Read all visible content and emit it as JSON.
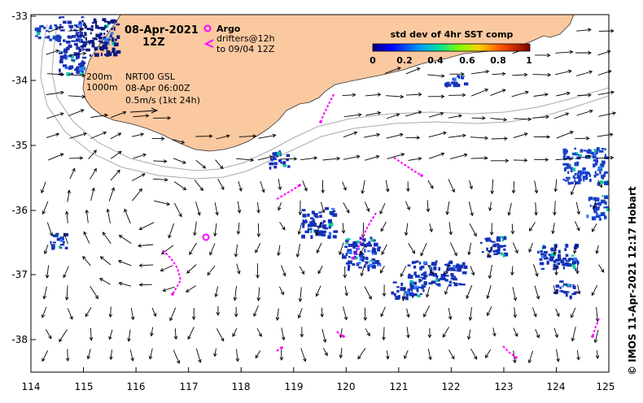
{
  "map": {
    "date_title": "08-Apr-2021",
    "time_title": "12Z",
    "legend_argo": "Argo",
    "legend_drifters_1": "drifters@12h",
    "legend_drifters_2": "to 09/04 12Z",
    "iso_200": "200m",
    "iso_1000": "1000m",
    "product_line_1": "NRT00 GSL",
    "product_line_2": "08-Apr 06:00Z",
    "product_line_3": "0.5m/s (1kt 24h)",
    "colorbar_title": "std dev of 4hr SST comp",
    "colorbar_ticks": [
      "0",
      "0.2",
      "0.4",
      "0.6",
      "0.8",
      "1"
    ],
    "credit": "© IMOS 11-Apr-2021 12:17 Hobart",
    "lon_ticks": [
      "114",
      "115",
      "116",
      "117",
      "118",
      "119",
      "120",
      "121",
      "122",
      "123",
      "124",
      "125"
    ],
    "lat_ticks": [
      "-33",
      "-34",
      "-35",
      "-36",
      "-37",
      "-38"
    ],
    "colors": {
      "land": "#fbc9a0",
      "argo": "#ff00ff",
      "drifter": "#ff00ff",
      "isobath": "#aaaaaa",
      "cloud_blue": "#1530b8"
    }
  }
}
